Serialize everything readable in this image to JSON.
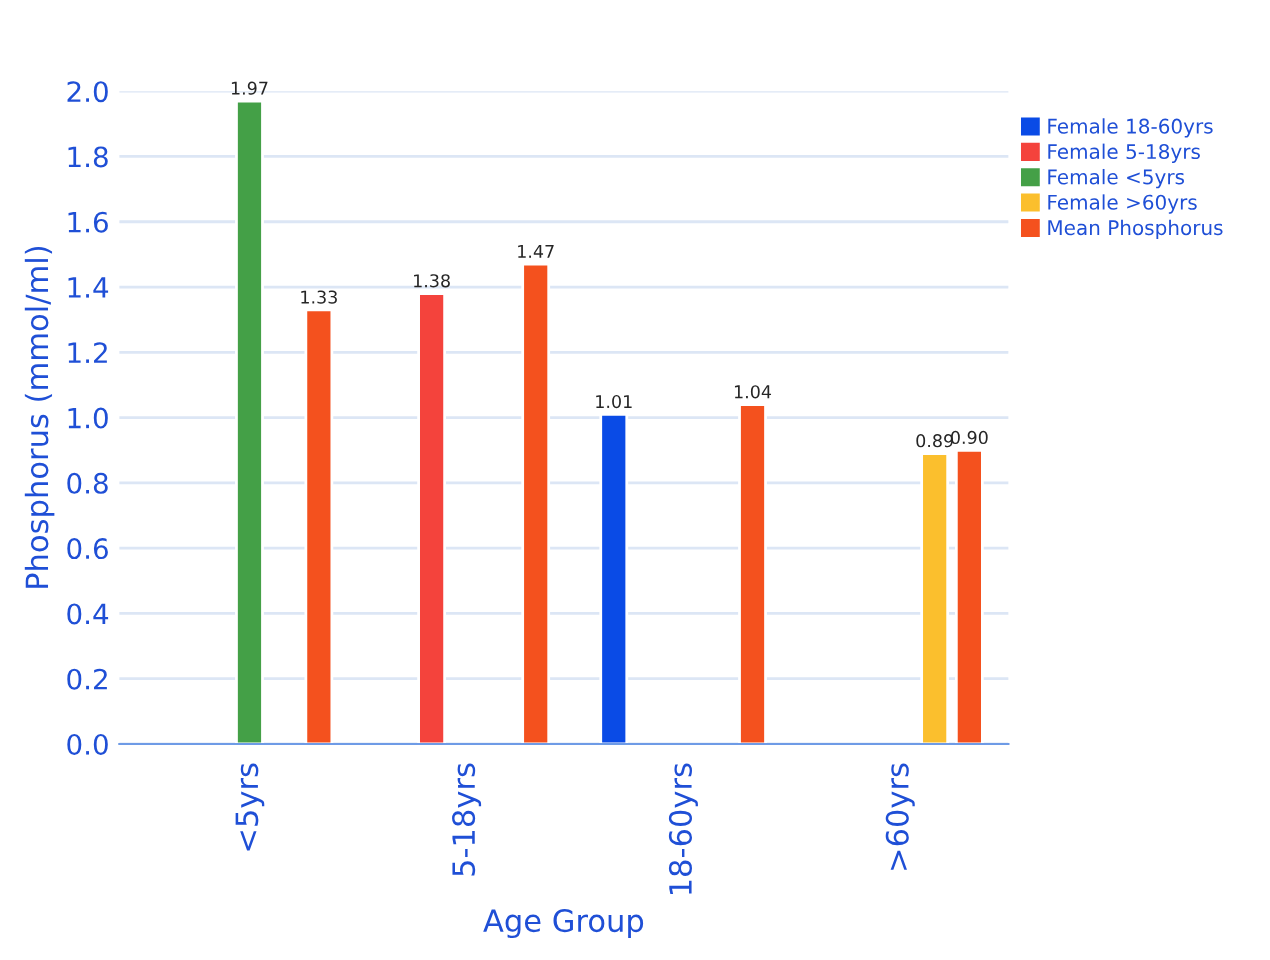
{
  "chart_data": {
    "type": "bar",
    "xlabel": "Age Group",
    "ylabel": "Phosphorus (mmol/ml)",
    "categories": [
      "<5yrs",
      "5-18yrs",
      "18-60yrs",
      ">60yrs"
    ],
    "series": [
      {
        "name": "Female 18-60yrs",
        "color": "#0a4be6",
        "values": [
          null,
          null,
          1.01,
          null
        ],
        "value_labels": [
          null,
          null,
          "1.01",
          null
        ]
      },
      {
        "name": "Female 5-18yrs",
        "color": "#f4433c",
        "values": [
          null,
          1.38,
          null,
          null
        ],
        "value_labels": [
          null,
          "1.38",
          null,
          null
        ]
      },
      {
        "name": "Female <5yrs",
        "color": "#44a047",
        "values": [
          1.97,
          null,
          null,
          null
        ],
        "value_labels": [
          "1.97",
          null,
          null,
          null
        ]
      },
      {
        "name": "Female >60yrs",
        "color": "#fbbf2d",
        "values": [
          null,
          null,
          null,
          0.89
        ],
        "value_labels": [
          null,
          null,
          null,
          "0.89"
        ]
      },
      {
        "name": "Mean Phosphorus",
        "color": "#f4511e",
        "values": [
          1.33,
          1.47,
          1.04,
          0.9
        ],
        "value_labels": [
          "1.33",
          "1.47",
          "1.04",
          "0.90"
        ]
      }
    ],
    "ylim": [
      0,
      2.0
    ],
    "yticks": [
      {
        "value": 0,
        "label": "0.0"
      },
      {
        "value": 0.2,
        "label": "0.2"
      },
      {
        "value": 0.4,
        "label": "0.4"
      },
      {
        "value": 0.6,
        "label": "0.6"
      },
      {
        "value": 0.8,
        "label": "0.8"
      },
      {
        "value": 1.0,
        "label": "1.0"
      },
      {
        "value": 1.2,
        "label": "1.2"
      },
      {
        "value": 1.4,
        "label": "1.4"
      },
      {
        "value": 1.6,
        "label": "1.6"
      },
      {
        "value": 1.8,
        "label": "1.8"
      },
      {
        "value": 2.0,
        "label": "2.0"
      }
    ],
    "grid": "y",
    "legend": "top right"
  }
}
